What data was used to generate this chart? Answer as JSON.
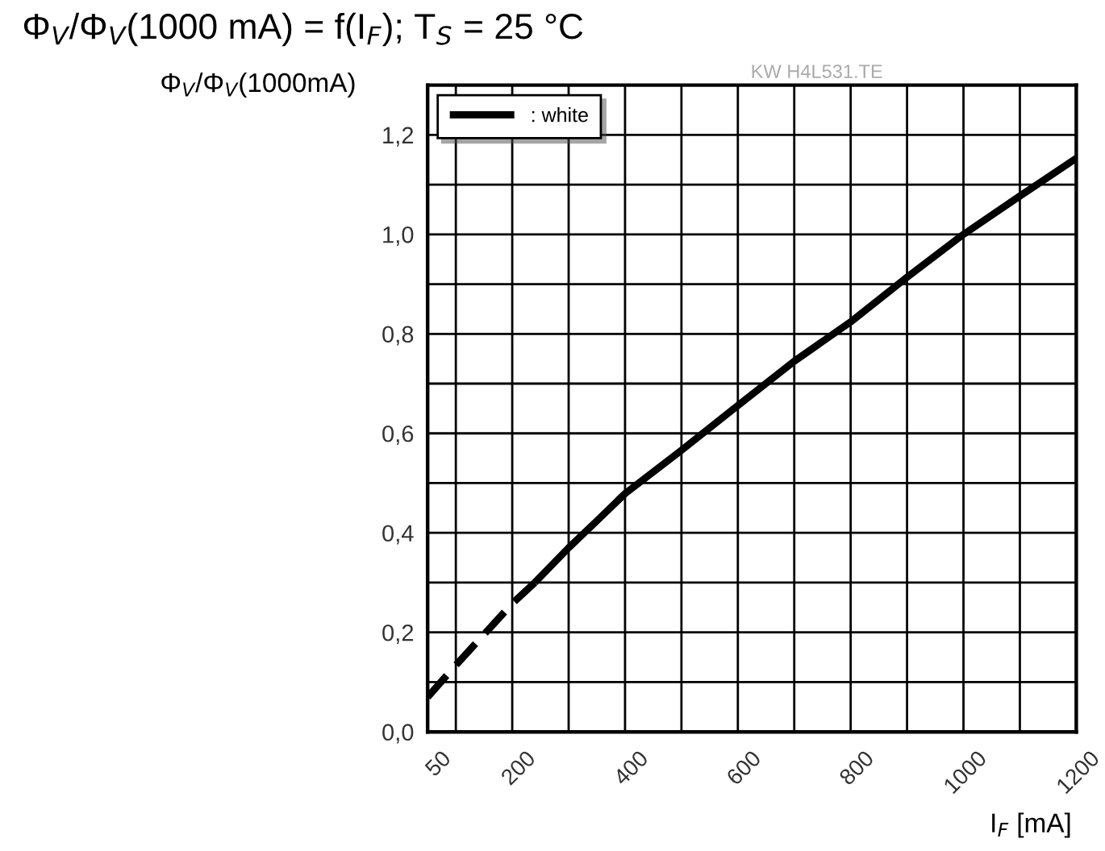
{
  "chart_data": {
    "type": "line",
    "title": "Φ$_{V}$/Φ$_{V}$(1000 mA) = f(I$_{F}$); T$_{S}$ = 25 °C",
    "xlabel": "I$_{F}$ [mA]",
    "ylabel": "Φ$_{V}$/Φ$_{V}$(1000mA)",
    "annotations": [
      "KW H4L531.TE"
    ],
    "series": [
      {
        "color": "#000000",
        "line_style": "dashed",
        "x": [
          50,
          100,
          200,
          240
        ],
        "values": [
          0.07,
          0.134,
          0.258,
          0.3
        ]
      },
      {
        "name": ": white",
        "color": "#000000",
        "line_style": "solid",
        "x": [
          240,
          300,
          350,
          400,
          500,
          600,
          700,
          800,
          900,
          1000,
          1100,
          1200
        ],
        "values": [
          0.3,
          0.37,
          0.424,
          0.479,
          0.566,
          0.656,
          0.745,
          0.824,
          0.914,
          1.0,
          1.077,
          1.153
        ]
      }
    ],
    "xlim": [
      50,
      1200
    ],
    "xticks": [
      50,
      {
        "value": 100,
        "label": null
      },
      200,
      {
        "value": 300,
        "label": null
      },
      400,
      {
        "value": 500,
        "label": null
      },
      600,
      {
        "value": 700,
        "label": null
      },
      800,
      {
        "value": 900,
        "label": null
      },
      1000,
      {
        "value": 1100,
        "label": null
      },
      1200
    ],
    "ylim": [
      0,
      1.3
    ],
    "yticks": [
      {
        "value": 0,
        "label": "0,0"
      },
      {
        "value": 0.1,
        "label": null
      },
      {
        "value": 0.2,
        "label": "0,2"
      },
      {
        "value": 0.3,
        "label": null
      },
      {
        "value": 0.4,
        "label": "0,4"
      },
      {
        "value": 0.5,
        "label": null
      },
      {
        "value": 0.6,
        "label": "0,6"
      },
      {
        "value": 0.7,
        "label": null
      },
      {
        "value": 0.8,
        "label": "0,8"
      },
      {
        "value": 0.9,
        "label": null
      },
      {
        "value": 1.0,
        "label": "1,0"
      },
      {
        "value": 1.1,
        "label": null
      },
      {
        "value": 1.2,
        "label": "1,2"
      }
    ],
    "grid": true,
    "legend": "top left",
    "marker": "none"
  }
}
